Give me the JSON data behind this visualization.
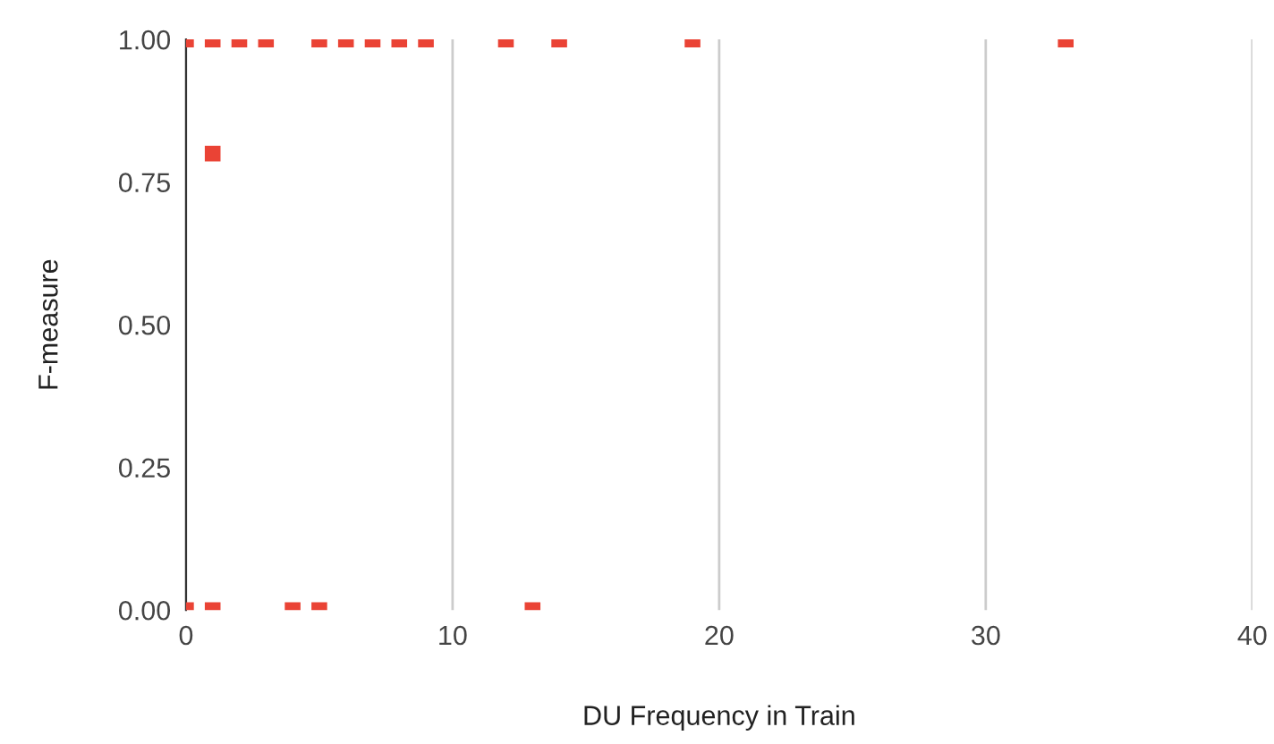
{
  "chart_data": {
    "type": "scatter",
    "xlabel": "DU Frequency in Train",
    "ylabel": "F-measure",
    "x": [
      0,
      1,
      2,
      3,
      5,
      6,
      7,
      8,
      9,
      12,
      14,
      19,
      33,
      1,
      0,
      1,
      4,
      5,
      13
    ],
    "series": [
      {
        "color": "#ea4335",
        "values": [
          1,
          1,
          1,
          1,
          1,
          1,
          1,
          1,
          1,
          1,
          1,
          1,
          1,
          0.8,
          0,
          0,
          0,
          0,
          0
        ]
      }
    ],
    "marker": "square",
    "grid": "x",
    "xlim": [
      0,
      40
    ],
    "xticks": [
      0,
      10,
      20,
      30,
      40
    ],
    "ylim": [
      0,
      1
    ],
    "yticks": [
      {
        "value": 0,
        "label": "0.00"
      },
      {
        "value": 0.25,
        "label": "0.25"
      },
      {
        "value": 0.5,
        "label": "0.50"
      },
      {
        "value": 0.75,
        "label": "0.75"
      },
      {
        "value": 1,
        "label": "1.00"
      }
    ]
  }
}
